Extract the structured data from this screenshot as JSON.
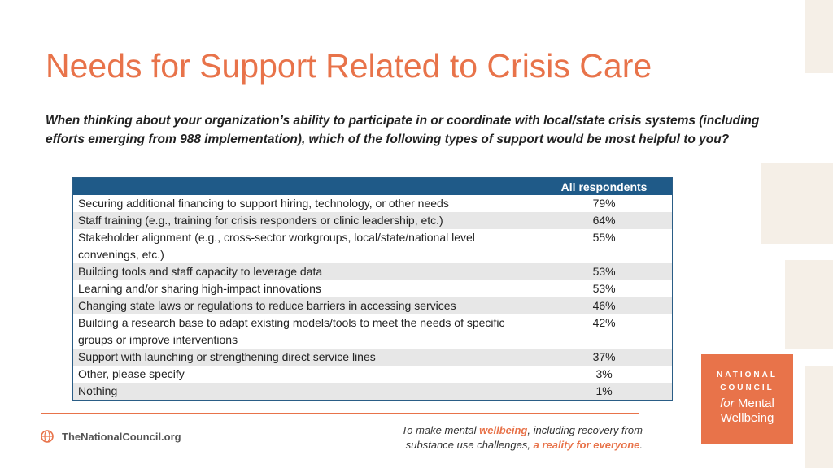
{
  "slide": {
    "title": "Needs for Support Related to Crisis Care",
    "question": "When thinking about your organization’s ability to participate in or coordinate with local/state crisis systems (including efforts emerging from 988 implementation), which of the following types of support would be most helpful to you?"
  },
  "table": {
    "header_blank": "",
    "header": "All respondents",
    "rows": [
      {
        "label": "Securing additional financing to support hiring, technology, or other needs",
        "value": "79%"
      },
      {
        "label": "Staff training (e.g., training for crisis responders or clinic leadership, etc.)",
        "value": "64%"
      },
      {
        "label": "Stakeholder alignment (e.g., cross-sector workgroups, local/state/national level convenings, etc.)",
        "value": "55%"
      },
      {
        "label": "Building tools and staff capacity to leverage data",
        "value": "53%"
      },
      {
        "label": "Learning and/or sharing high-impact innovations",
        "value": "53%"
      },
      {
        "label": "Changing state laws or regulations to reduce barriers in accessing services",
        "value": "46%"
      },
      {
        "label": "Building a research base to adapt existing models/tools to meet the needs of specific groups or improve interventions",
        "value": "42%"
      },
      {
        "label": "Support with launching or strengthening direct service lines",
        "value": "37%"
      },
      {
        "label": "Other, please specify",
        "value": "3%"
      },
      {
        "label": "Nothing",
        "value": "1%"
      }
    ]
  },
  "footer": {
    "site": "TheNationalCouncil.org",
    "tagline_1": "To make mental ",
    "tagline_2": "wellbeing",
    "tagline_3": ", including recovery from substance use challenges, ",
    "tagline_4": "a reality for everyone",
    "tagline_5": "."
  },
  "logo": {
    "line1": "NATIONAL",
    "line2": "COUNCIL",
    "line3_for": "for",
    "line3_rest": "Mental",
    "line4": "Wellbeing"
  },
  "colors": {
    "accent": "#e8734a",
    "table_header": "#1f5a88",
    "row_shade": "#e7e7e7"
  },
  "icons": {
    "globe": "globe-icon"
  }
}
